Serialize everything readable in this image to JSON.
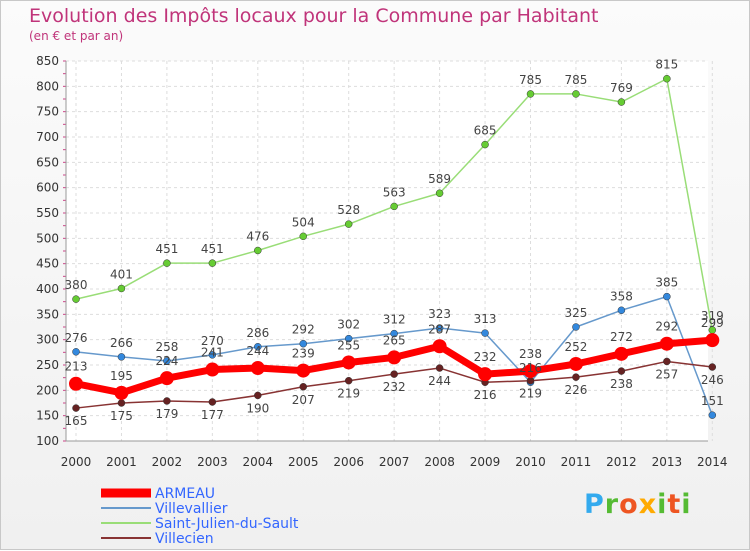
{
  "chart_data": {
    "type": "line",
    "title": "Evolution des Impôts locaux pour la Commune par Habitant",
    "subtitle": "(en € et par an)",
    "xlabel": "",
    "ylabel": "",
    "ylim": [
      100,
      850
    ],
    "yticks": [
      100,
      150,
      200,
      250,
      300,
      350,
      400,
      450,
      500,
      550,
      600,
      650,
      700,
      750,
      800,
      850
    ],
    "grid": true,
    "legend_position": "bottom-left",
    "x": [
      "2000",
      "2001",
      "2002",
      "2003",
      "2004",
      "2005",
      "2006",
      "2007",
      "2008",
      "2009",
      "2010",
      "2011",
      "2012",
      "2013",
      "2014"
    ],
    "series": [
      {
        "name": "Saint-Julien-du-Sault",
        "color": "#99dd77",
        "marker_color": "#66cc33",
        "line_width": 1.5,
        "values": [
          380,
          401,
          451,
          451,
          476,
          504,
          528,
          563,
          589,
          685,
          785,
          785,
          769,
          815,
          319
        ]
      },
      {
        "name": "Villevallier",
        "color": "#6699cc",
        "marker_color": "#3388dd",
        "line_width": 1.5,
        "values": [
          276,
          266,
          258,
          270,
          286,
          292,
          302,
          312,
          323,
          313,
          216,
          325,
          358,
          385,
          151
        ]
      },
      {
        "name": "Villecien",
        "color": "#883333",
        "marker_color": "#662222",
        "line_width": 1.5,
        "values": [
          165,
          175,
          179,
          177,
          190,
          207,
          219,
          232,
          244,
          216,
          219,
          226,
          238,
          257,
          246
        ]
      },
      {
        "name": "ARMEAU",
        "color": "#ff0000",
        "marker_color": "#ff0000",
        "line_width": 7,
        "values": [
          213,
          195,
          224,
          241,
          244,
          239,
          255,
          265,
          287,
          232,
          238,
          252,
          272,
          292,
          299
        ]
      }
    ],
    "legend_order": [
      "ARMEAU",
      "Villevallier",
      "Saint-Julien-du-Sault",
      "Villecien"
    ],
    "legend_text_color": "#3366ff"
  },
  "logo": {
    "letters": [
      "P",
      "r",
      "o",
      "x",
      "i",
      "t",
      "i"
    ],
    "colors": [
      "#33aaee",
      "#55bb33",
      "#ee5522",
      "#ffaa00",
      "#55bb33",
      "#ee5522",
      "#55bb33"
    ]
  }
}
